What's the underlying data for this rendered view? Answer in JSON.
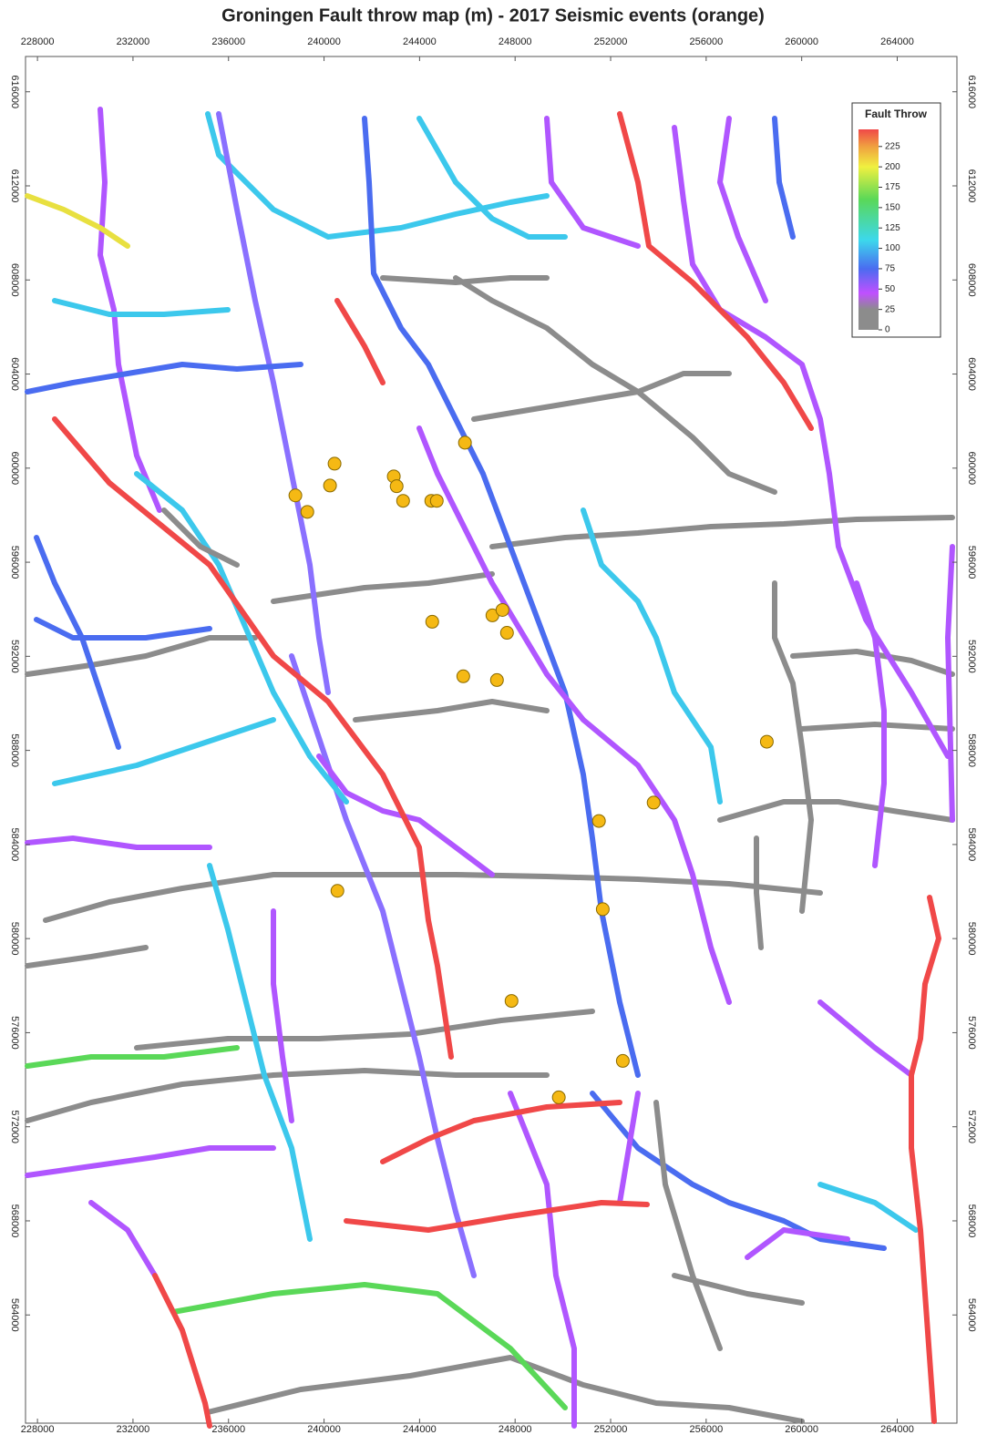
{
  "chart_data": {
    "type": "scatter",
    "title": "Groningen Fault throw map (m) - 2017 Seismic events (orange)",
    "xlim": [
      227500,
      266500
    ],
    "ylim": [
      559400,
      617500
    ],
    "xticks": [
      228000,
      232000,
      236000,
      240000,
      244000,
      248000,
      252000,
      256000,
      260000,
      264000
    ],
    "yticks": [
      564000,
      568000,
      572000,
      576000,
      580000,
      584000,
      588000,
      592000,
      596000,
      600000,
      604000,
      608000,
      612000,
      616000
    ],
    "x": [
      245900,
      240440,
      238800,
      239300,
      240250,
      242920,
      243040,
      243310,
      244490,
      244720,
      244530,
      247050,
      247470,
      247660,
      245830,
      247240,
      258540,
      253800,
      251510,
      240560,
      251670,
      247850,
      252510,
      249830
    ],
    "values": [
      601080,
      600190,
      598840,
      598140,
      599260,
      599650,
      599230,
      598610,
      598610,
      598610,
      593470,
      593740,
      593970,
      593000,
      591150,
      590990,
      588370,
      585780,
      585000,
      582030,
      581250,
      577350,
      574800,
      573250
    ],
    "color": "#f5b914",
    "colorbar": {
      "title": "Fault Throw",
      "lim": [
        0,
        246
      ],
      "ticks": [
        0,
        25,
        50,
        75,
        100,
        125,
        150,
        175,
        200,
        225
      ],
      "stops": [
        {
          "value": 0,
          "color": "#8c8c8c"
        },
        {
          "value": 25,
          "color": "#8c8c8c"
        },
        {
          "value": 45,
          "color": "#c050ff"
        },
        {
          "value": 75,
          "color": "#4a6cf0"
        },
        {
          "value": 110,
          "color": "#3cd8ec"
        },
        {
          "value": 160,
          "color": "#5ad858"
        },
        {
          "value": 200,
          "color": "#f0f040"
        },
        {
          "value": 225,
          "color": "#f0a040"
        },
        {
          "value": 246,
          "color": "#f04848"
        }
      ]
    }
  }
}
